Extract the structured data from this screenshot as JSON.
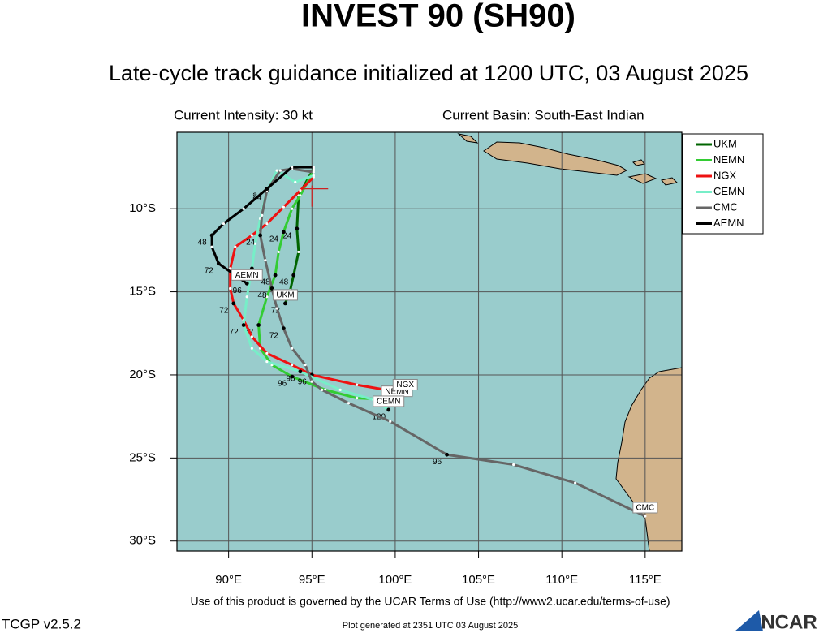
{
  "chart_data": {
    "type": "track-map",
    "title": "INVEST 90 (SH90)",
    "subtitle": "Late-cycle track guidance initialized at 1200 UTC, 03 August 2025",
    "intensity_text": "Current Intensity: 30 kt",
    "basin_text": "Current Basin: South-East Indian",
    "terms_text": "Use of this product is governed by the UCAR Terms of Use (http://www2.ucar.edu/terms-of-use)",
    "version_text": "TCGP v2.5.2",
    "generated_text": "Plot generated at 2351 UTC   03 August 2025",
    "logo_text": "NCAR",
    "xlim": [
      86.9,
      117.2
    ],
    "ylim": [
      -30.6,
      -5.4
    ],
    "xticks": [
      {
        "value": 90,
        "label": "90°E"
      },
      {
        "value": 95,
        "label": "95°E"
      },
      {
        "value": 100,
        "label": "100°E"
      },
      {
        "value": 105,
        "label": "105°E"
      },
      {
        "value": 110,
        "label": "110°E"
      },
      {
        "value": 115,
        "label": "115°E"
      }
    ],
    "yticks": [
      {
        "value": -10,
        "label": "10°S"
      },
      {
        "value": -15,
        "label": "15°S"
      },
      {
        "value": -20,
        "label": "20°S"
      },
      {
        "value": -25,
        "label": "25°S"
      },
      {
        "value": -30,
        "label": "30°S"
      }
    ],
    "grid": true,
    "current_position": {
      "x": 95.0,
      "y": -8.8
    },
    "series": [
      {
        "name": "UKM",
        "color": "#006400",
        "x": [
          95.1,
          94.2,
          94.1,
          94.2,
          93.9,
          93.7,
          93.4
        ],
        "values": [
          -7.6,
          -9.2,
          -11.2,
          -12.6,
          -14.0,
          -14.9,
          -15.7
        ],
        "point_labels": [
          null,
          null,
          24,
          null,
          48,
          null,
          72
        ]
      },
      {
        "name": "NEMN",
        "color": "#33cc33",
        "x": [
          95.1,
          94.3,
          93.8,
          93.3,
          93.0,
          92.8,
          92.3,
          91.8,
          91.9,
          92.6,
          93.8,
          95.8,
          97.7,
          100.1
        ],
        "values": [
          -7.7,
          -9.2,
          -10.0,
          -11.4,
          -12.6,
          -14.0,
          -15.3,
          -17.0,
          -18.4,
          -19.4,
          -20.1,
          -20.9,
          -21.4,
          -21.5
        ],
        "point_labels": [
          null,
          null,
          null,
          24,
          null,
          48,
          null,
          72,
          null,
          null,
          96,
          null,
          null,
          null
        ]
      },
      {
        "name": "NGX",
        "color": "#ee1111",
        "x": [
          95.1,
          94.3,
          93.3,
          92.3,
          91.4,
          90.4,
          90.1,
          90.1,
          90.3,
          90.9,
          91.4,
          92.3,
          93.8,
          95.0,
          97.7,
          100.6
        ],
        "values": [
          -8.1,
          -8.9,
          -9.9,
          -10.9,
          -11.6,
          -12.3,
          -13.6,
          -14.8,
          -15.7,
          -16.7,
          -17.7,
          -18.7,
          -19.4,
          -20.0,
          -20.6,
          -21.1
        ],
        "point_labels": [
          null,
          null,
          null,
          null,
          null,
          null,
          null,
          null,
          72,
          null,
          null,
          null,
          null,
          96,
          null,
          120
        ]
      },
      {
        "name": "CEMN",
        "color": "#77eec8",
        "x": [
          95.1,
          94.0,
          92.9,
          92.3,
          91.9,
          91.6,
          91.4,
          91.1,
          90.9,
          91.4,
          92.3,
          94.3,
          96.7,
          98.7,
          99.6
        ],
        "values": [
          -8.0,
          -8.4,
          -7.7,
          -8.9,
          -10.6,
          -12.1,
          -13.6,
          -15.3,
          -17.0,
          -18.4,
          -19.2,
          -19.8,
          -20.9,
          -21.5,
          -22.1
        ],
        "point_labels": [
          null,
          null,
          null,
          24,
          null,
          null,
          48,
          null,
          72,
          null,
          null,
          96,
          null,
          null,
          120
        ]
      },
      {
        "name": "CMC",
        "color": "#666666",
        "x": [
          95.1,
          93.8,
          93.1,
          92.3,
          92.0,
          91.9,
          92.2,
          92.6,
          92.9,
          93.3,
          93.8,
          94.6,
          95.0,
          95.6,
          97.2,
          99.7,
          103.1,
          107.1,
          110.8,
          115.0
        ],
        "values": [
          -7.8,
          -7.6,
          -7.7,
          -8.9,
          -10.4,
          -11.6,
          -13.1,
          -14.8,
          -16.0,
          -17.2,
          -18.4,
          -19.4,
          -20.4,
          -20.9,
          -21.7,
          -22.8,
          -24.8,
          -25.4,
          -26.5,
          -28.5
        ],
        "point_labels": [
          null,
          null,
          null,
          null,
          null,
          24,
          null,
          48,
          null,
          72,
          null,
          null,
          null,
          null,
          null,
          null,
          96,
          null,
          null,
          null
        ]
      },
      {
        "name": "AEMN",
        "color": "#000000",
        "x": [
          95.1,
          93.8,
          92.3,
          90.9,
          89.7,
          89.0,
          89.0,
          89.4,
          90.4,
          91.1
        ],
        "values": [
          -7.5,
          -7.5,
          -8.8,
          -10.0,
          -10.9,
          -11.6,
          -12.3,
          -13.3,
          -14.0,
          -14.5
        ],
        "point_labels": [
          null,
          null,
          24,
          null,
          null,
          48,
          null,
          72,
          null,
          96
        ]
      }
    ]
  }
}
